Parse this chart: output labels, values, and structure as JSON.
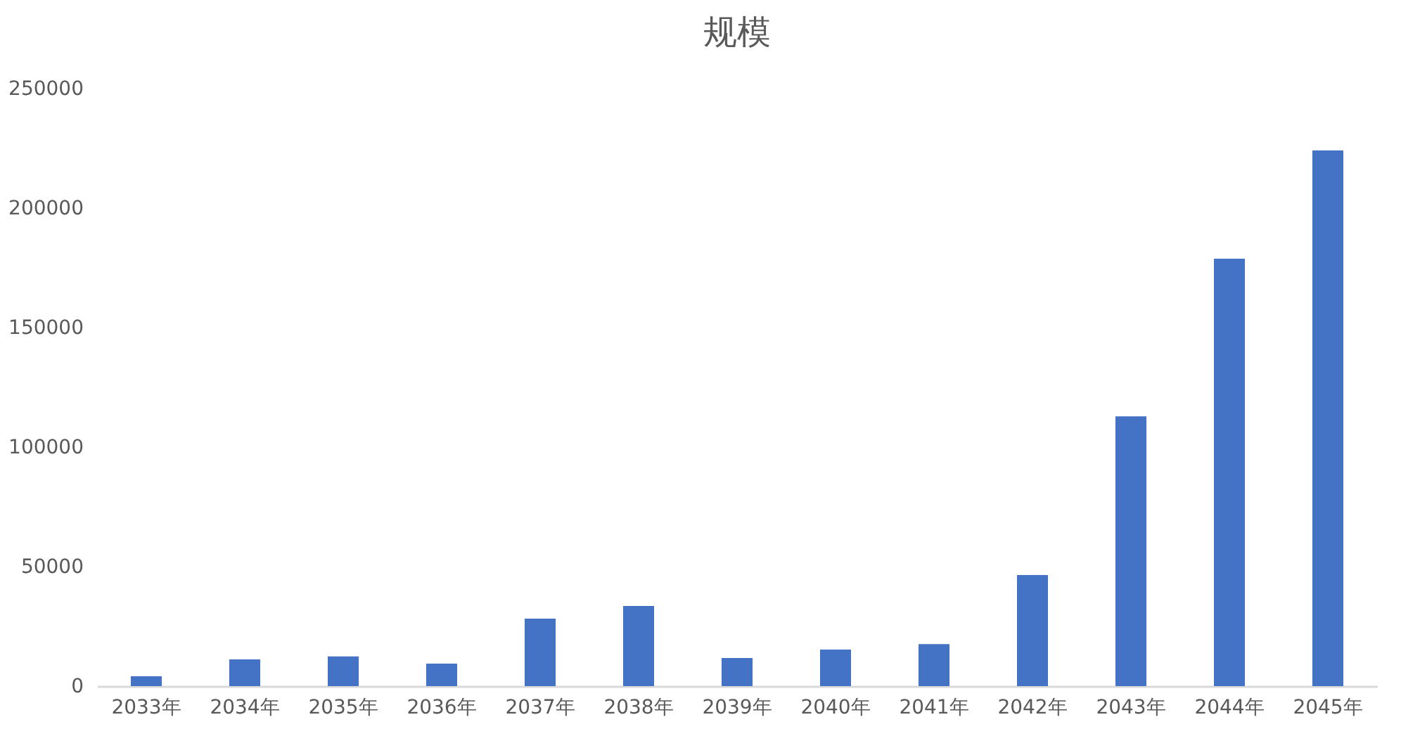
{
  "chart_data": {
    "type": "bar",
    "title": "规模",
    "categories": [
      "2033年",
      "2034年",
      "2035年",
      "2036年",
      "2037年",
      "2038年",
      "2039年",
      "2040年",
      "2041年",
      "2042年",
      "2043年",
      "2044年",
      "2045年"
    ],
    "values": [
      4100,
      11200,
      12400,
      9400,
      28200,
      33500,
      11800,
      15300,
      17600,
      46500,
      112900,
      178800,
      224100
    ],
    "color": "#4472c4",
    "ylim": [
      0,
      250000
    ],
    "yticks": [
      0,
      50000,
      100000,
      150000,
      200000,
      250000
    ],
    "grid": false
  }
}
